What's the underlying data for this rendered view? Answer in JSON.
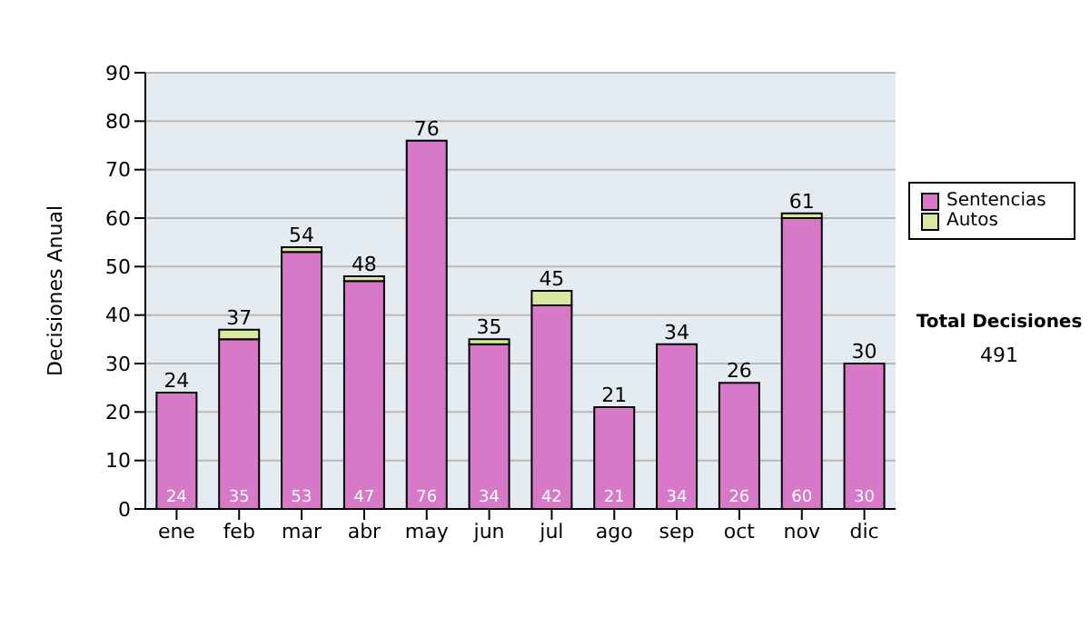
{
  "chart_data": {
    "type": "bar",
    "ylabel": "Decisiones Anual",
    "categories": [
      "ene",
      "feb",
      "mar",
      "abr",
      "may",
      "jun",
      "jul",
      "ago",
      "sep",
      "oct",
      "nov",
      "dic"
    ],
    "series": [
      {
        "name": "Sentencias",
        "color": "#d878c8",
        "values": [
          24,
          35,
          53,
          47,
          76,
          34,
          42,
          21,
          34,
          26,
          60,
          30
        ],
        "value_labels": [
          "24",
          "35",
          "53",
          "47",
          "76",
          "34",
          "42",
          "21",
          "34",
          "26",
          "60",
          "30"
        ]
      },
      {
        "name": "Autos",
        "color": "#d8e8a0",
        "values": [
          0,
          2,
          1,
          1,
          0,
          1,
          3,
          0,
          0,
          0,
          1,
          0
        ]
      }
    ],
    "stacked": true,
    "totals": [
      "24",
      "37",
      "54",
      "48",
      "76",
      "35",
      "45",
      "21",
      "34",
      "26",
      "61",
      "30"
    ],
    "ylim": [
      0,
      90
    ],
    "yticks": [
      0,
      10,
      20,
      30,
      40,
      50,
      60,
      70,
      80,
      90
    ],
    "grid": "y",
    "legend": "right",
    "annotations": [
      "Total Decisiones",
      "491"
    ]
  }
}
